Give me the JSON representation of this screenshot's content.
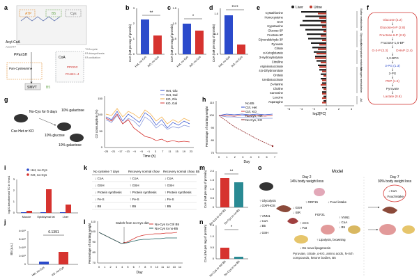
{
  "panel_letters": [
    "a",
    "b",
    "c",
    "d",
    "e",
    "f",
    "g",
    "h",
    "i",
    "j",
    "k",
    "l",
    "m",
    "n",
    "o"
  ],
  "colors": {
    "het": "#2b4acb",
    "ko": "#d6332f",
    "liver": "#1e1e1e",
    "urine": "#c0392b",
    "orange_box": "#e08a2c",
    "green_box": "#6aa84f",
    "gray_box": "#9aa0a6",
    "red_text": "#d0312d",
    "blue_text": "#2b4acb"
  },
  "panel_a": {
    "metabolites": [
      "Acyl-CoA",
      "ACOT7",
      "PPanSH",
      "Pan-Cysteamine",
      "ATP",
      "B5",
      "PPCDC",
      "PANK1–4",
      "SMVT",
      "CoA",
      "NAD",
      "Cys"
    ],
    "pathways": [
      "TCA cycle",
      "FA biosynthesis",
      "FA oxidation"
    ]
  },
  "panel_b": {
    "ylabel": "CoA (nM per mg of protein)",
    "significance": "**",
    "ticks": [
      "0",
      "1",
      "2",
      "3"
    ],
    "categories": [
      "Het, no-Cys",
      "KO, no-Cys"
    ]
  },
  "panel_c": {
    "ylabel": "CoA (nM per mg of protein)",
    "significance": "*",
    "ticks": [
      "0",
      "0.5",
      "1.0",
      "1.5"
    ],
    "categories": [
      "Het, no-Cys",
      "KO, no-Cys"
    ]
  },
  "panel_d": {
    "ylabel": "CoA (nM per mg of protein)",
    "significance": "****",
    "ticks": [
      "0",
      "0.5",
      "1.0"
    ],
    "categories": [
      "Het, no-Cys",
      "KO, no-Cys"
    ]
  },
  "panel_e": {
    "legend": [
      "Liver",
      "Urine"
    ],
    "metabolites": [
      "Cystathionine",
      "Homocysteine",
      "SAH",
      "Hypotaurine",
      "Glucose 6P",
      "Fructose 6P",
      "Glyceraldehyde 3P",
      "Pyruvate",
      "Citrate",
      "α-Ketoglutarate",
      "3-Hydroxybutyrate",
      "Citrulline",
      "Argininosuccinate",
      "4,5-Dihydroorotate",
      "Orotate",
      "Ureidosuccinate",
      "β-Alanine",
      "Choline",
      "Carnosine",
      "Leucine",
      "Asparagine"
    ],
    "group_labels": [
      "Sulfur metabolism",
      "Glycolysis",
      "Carbohydrate metabolism",
      "Nitrogen metabolism",
      "AA"
    ],
    "xlabel": "log2[FC]",
    "xticks": [
      "−6",
      "−4",
      "−2",
      "0",
      "2",
      "4"
    ]
  },
  "panel_f": {
    "items": [
      {
        "text": "Glucose (2.2)",
        "color": "#d0312d"
      },
      {
        "text": "Glucose-6-P (2.8)",
        "color": "#d0312d"
      },
      {
        "text": "Fructose-6-P (2.8)",
        "color": "#d0312d"
      },
      {
        "text": "Fructose-1,6-BP",
        "color": "#222222"
      },
      {
        "text": "G-3-P (3.3)",
        "color": "#d0312d"
      },
      {
        "text": "DHAP (2.4)",
        "color": "#d0312d"
      },
      {
        "text": "1,3-BPG",
        "color": "#222222"
      },
      {
        "text": "3-PG (1.3)",
        "color": "#2b4acb"
      },
      {
        "text": "2-PG",
        "color": "#222222"
      },
      {
        "text": "PEP (1.5)",
        "color": "#d0312d"
      },
      {
        "text": "Pyruvate",
        "color": "#222222"
      },
      {
        "text": "Lactate (0.6)",
        "color": "#d0312d"
      }
    ]
  },
  "panel_g": {
    "labels": [
      "No-Cys for 6 days",
      "Cse Het or KO",
      "10% galactose",
      "10% glucose",
      "10% galactose"
    ],
    "legend": [
      "Het, Glu",
      "Het, Gal",
      "KO, Glu",
      "KO, Gal"
    ],
    "ylabel": "O2 consumption (%)",
    "xlabel": "Time (h)",
    "yticks": [
      "0",
      "50",
      "100",
      "150"
    ],
    "xticks": [
      "−25",
      "−21",
      "−17",
      "−13",
      "−9",
      "−5",
      "−1",
      "3",
      "7",
      "11",
      "15",
      "19",
      "23"
    ]
  },
  "panel_h": {
    "legend": [
      "No B5",
      "Ctrl, Het",
      "Ctrl, KO",
      "No-Cys, Het",
      "No-Cys, KO"
    ],
    "ylabel": "Percentage of starting weight",
    "xlabel": "Day",
    "yticks": [
      "70",
      "80",
      "90",
      "100",
      "110"
    ],
    "xticks": [
      "0",
      "1",
      "2",
      "3",
      "4",
      "5",
      "6",
      "7"
    ]
  },
  "panel_i": {
    "legend": [
      "Het, no-Cys",
      "KO, no-Cys"
    ],
    "ylabel": "log10-transformed TC in Vmn1",
    "yticks": [
      "0",
      "1",
      "2",
      "3"
    ],
    "categories": [
      "Muscle",
      "Epididymal fat",
      "Liver"
    ]
  },
  "panel_j": {
    "pvalue": "0.1391",
    "ylabel": "B5 (a.u.)",
    "yticks": [
      "0",
      "1×10⁸",
      "2×10⁸",
      "3×10⁸",
      "4×10⁸"
    ],
    "categories": [
      "Het, no-Cys",
      "KO, no-Cys"
    ]
  },
  "panel_k": {
    "headers": [
      "No cysteine 7 days",
      "Recovery normal chow",
      "Recovery normal chow, B5"
    ],
    "rows": [
      [
        "↓ CoA",
        "↑ CoA",
        "↓ CoA"
      ],
      [
        "↓ GSH",
        "↑ GSH",
        "↑ GSH"
      ],
      [
        "↓ Protein synthesis",
        "↑ Protein synthesis",
        "↑ Protein synthesis"
      ],
      [
        "↓ Fe-S",
        "↑ Fe-S",
        "↓ Fe-S"
      ],
      [
        "↓ B5",
        "↑ B5",
        "↑ B5"
      ]
    ]
  },
  "panel_l": {
    "annotation": "Switch from no-Cys diet",
    "legend": [
      "No-Cys to Ctrl B5",
      "No-Cys to no-B5"
    ],
    "ylabel": "Percentage of starting weight",
    "xlabel": "Day",
    "yticks": [
      "70",
      "80",
      "90",
      "100",
      "110"
    ],
    "xticks": [
      "0",
      "1",
      "2",
      "3",
      "4",
      "5",
      "6",
      "7",
      "8",
      "9",
      "10",
      "11",
      "12",
      "13",
      "14"
    ]
  },
  "panel_m": {
    "significance": "**",
    "ylabel": "CoA (nM per mg of protein)",
    "yticks": [
      "0",
      "0.5",
      "1.0",
      "1.5",
      "2.0"
    ],
    "categories": [
      "No-Cys to Ctrl B5",
      "No-Cys to no-B5"
    ]
  },
  "panel_n": {
    "significance": "*",
    "ylabel": "CoA (nM per mg of protein)",
    "yticks": [
      "0",
      "0.5",
      "1.0",
      "1.5"
    ],
    "categories": [
      "No-Cys to Ctrl B5",
      "No-Cys to no-B5"
    ]
  },
  "panel_o": {
    "title": "Model",
    "day2": "Day 2",
    "day2_loss": "14% body weight loss",
    "day7": "Day 7",
    "day7_loss": "30% body weight loss",
    "labels": [
      "↑ GDF15",
      "↓ Food intake",
      "↑ Glycolysis",
      "↓ OXPHOS",
      "↓ GSH",
      "↓ ISR",
      "↑ VNN1",
      "↓ CoA",
      "↓ B5",
      "↑ ACC",
      "↓ Fat",
      "↓ GSH",
      "FGF21",
      "↑ Lipolysis, browning",
      "↑ VNN1",
      "↓ CoA",
      "↓ B5",
      "↓ De novo lipogenesis",
      "Pyruvate, citrate, α-KG, amino acids, N-rich compounds, ketone bodies, B5",
      "↓ CoA",
      "↓ Food intake"
    ]
  }
}
